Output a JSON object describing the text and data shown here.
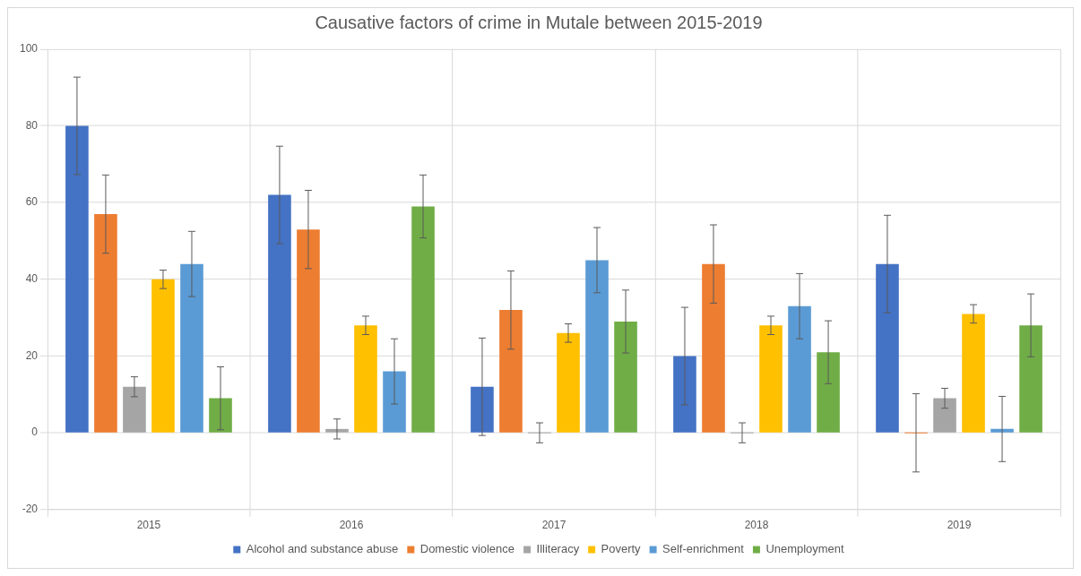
{
  "chart_data": {
    "type": "bar",
    "title": "Causative factors of crime in Mutale between 2015-2019",
    "categories": [
      "2015",
      "2016",
      "2017",
      "2018",
      "2019"
    ],
    "ylim": [
      -20,
      100
    ],
    "yticks": [
      -20,
      0,
      20,
      40,
      60,
      80,
      100
    ],
    "grid": true,
    "legend": "bottom",
    "series": [
      {
        "name": "Alcohol and substance abuse",
        "color": "#4472c4",
        "values": [
          80,
          62,
          12,
          20,
          44
        ],
        "errors": [
          12.7,
          12.7,
          12.7,
          12.7,
          12.7
        ]
      },
      {
        "name": "Domestic violence",
        "color": "#ed7d31",
        "values": [
          57,
          53,
          32,
          44,
          0
        ],
        "errors": [
          10.2,
          10.2,
          10.2,
          10.2,
          10.2
        ]
      },
      {
        "name": "Illiteracy",
        "color": "#a5a5a5",
        "values": [
          12,
          1,
          0,
          0,
          9
        ],
        "errors": [
          2.6,
          2.6,
          2.6,
          2.6,
          2.6
        ]
      },
      {
        "name": "Poverty",
        "color": "#ffc000",
        "values": [
          40,
          28,
          26,
          28,
          31
        ],
        "errors": [
          2.4,
          2.4,
          2.4,
          2.4,
          2.4
        ]
      },
      {
        "name": "Self-enrichment",
        "color": "#5b9bd5",
        "values": [
          44,
          16,
          45,
          33,
          1
        ],
        "errors": [
          8.5,
          8.5,
          8.5,
          8.5,
          8.5
        ]
      },
      {
        "name": "Unemployment",
        "color": "#70ad47",
        "values": [
          9,
          59,
          29,
          21,
          28
        ],
        "errors": [
          8.2,
          8.2,
          8.2,
          8.2,
          8.2
        ]
      }
    ]
  }
}
